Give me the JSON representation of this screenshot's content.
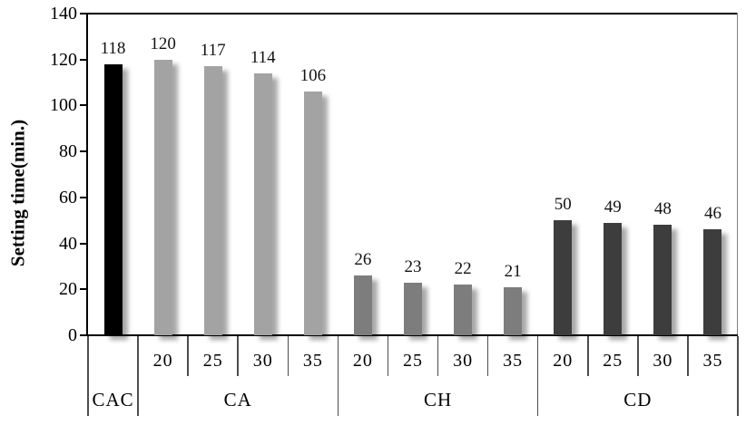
{
  "chart_data": {
    "type": "bar",
    "title": "",
    "xlabel": "",
    "ylabel": "Setting time(min.)",
    "ylim": [
      0,
      140
    ],
    "yticks": [
      0,
      20,
      40,
      60,
      80,
      100,
      120,
      140
    ],
    "grid": false,
    "legend": "none",
    "value_labels_shown": true,
    "groups": [
      {
        "label": "CAC",
        "color": "#000000",
        "bars": [
          {
            "x": "",
            "value": 118
          }
        ]
      },
      {
        "label": "CA",
        "color": "#a3a3a3",
        "bars": [
          {
            "x": "20",
            "value": 120
          },
          {
            "x": "25",
            "value": 117
          },
          {
            "x": "30",
            "value": 114
          },
          {
            "x": "35",
            "value": 106
          }
        ]
      },
      {
        "label": "CH",
        "color": "#7d7d7d",
        "bars": [
          {
            "x": "20",
            "value": 26
          },
          {
            "x": "25",
            "value": 23
          },
          {
            "x": "30",
            "value": 22
          },
          {
            "x": "35",
            "value": 21
          }
        ]
      },
      {
        "label": "CD",
        "color": "#3d3d3d",
        "bars": [
          {
            "x": "20",
            "value": 50
          },
          {
            "x": "25",
            "value": 49
          },
          {
            "x": "30",
            "value": 48
          },
          {
            "x": "35",
            "value": 46
          }
        ]
      }
    ],
    "colors": {
      "background": "#ffffff",
      "axis": "#000000",
      "plot_right_border": "#808080",
      "table_divider": "#4d4d4d",
      "bar_shadow": "rgba(0,0,0,0.35)",
      "value_label_text": "#121212"
    }
  }
}
